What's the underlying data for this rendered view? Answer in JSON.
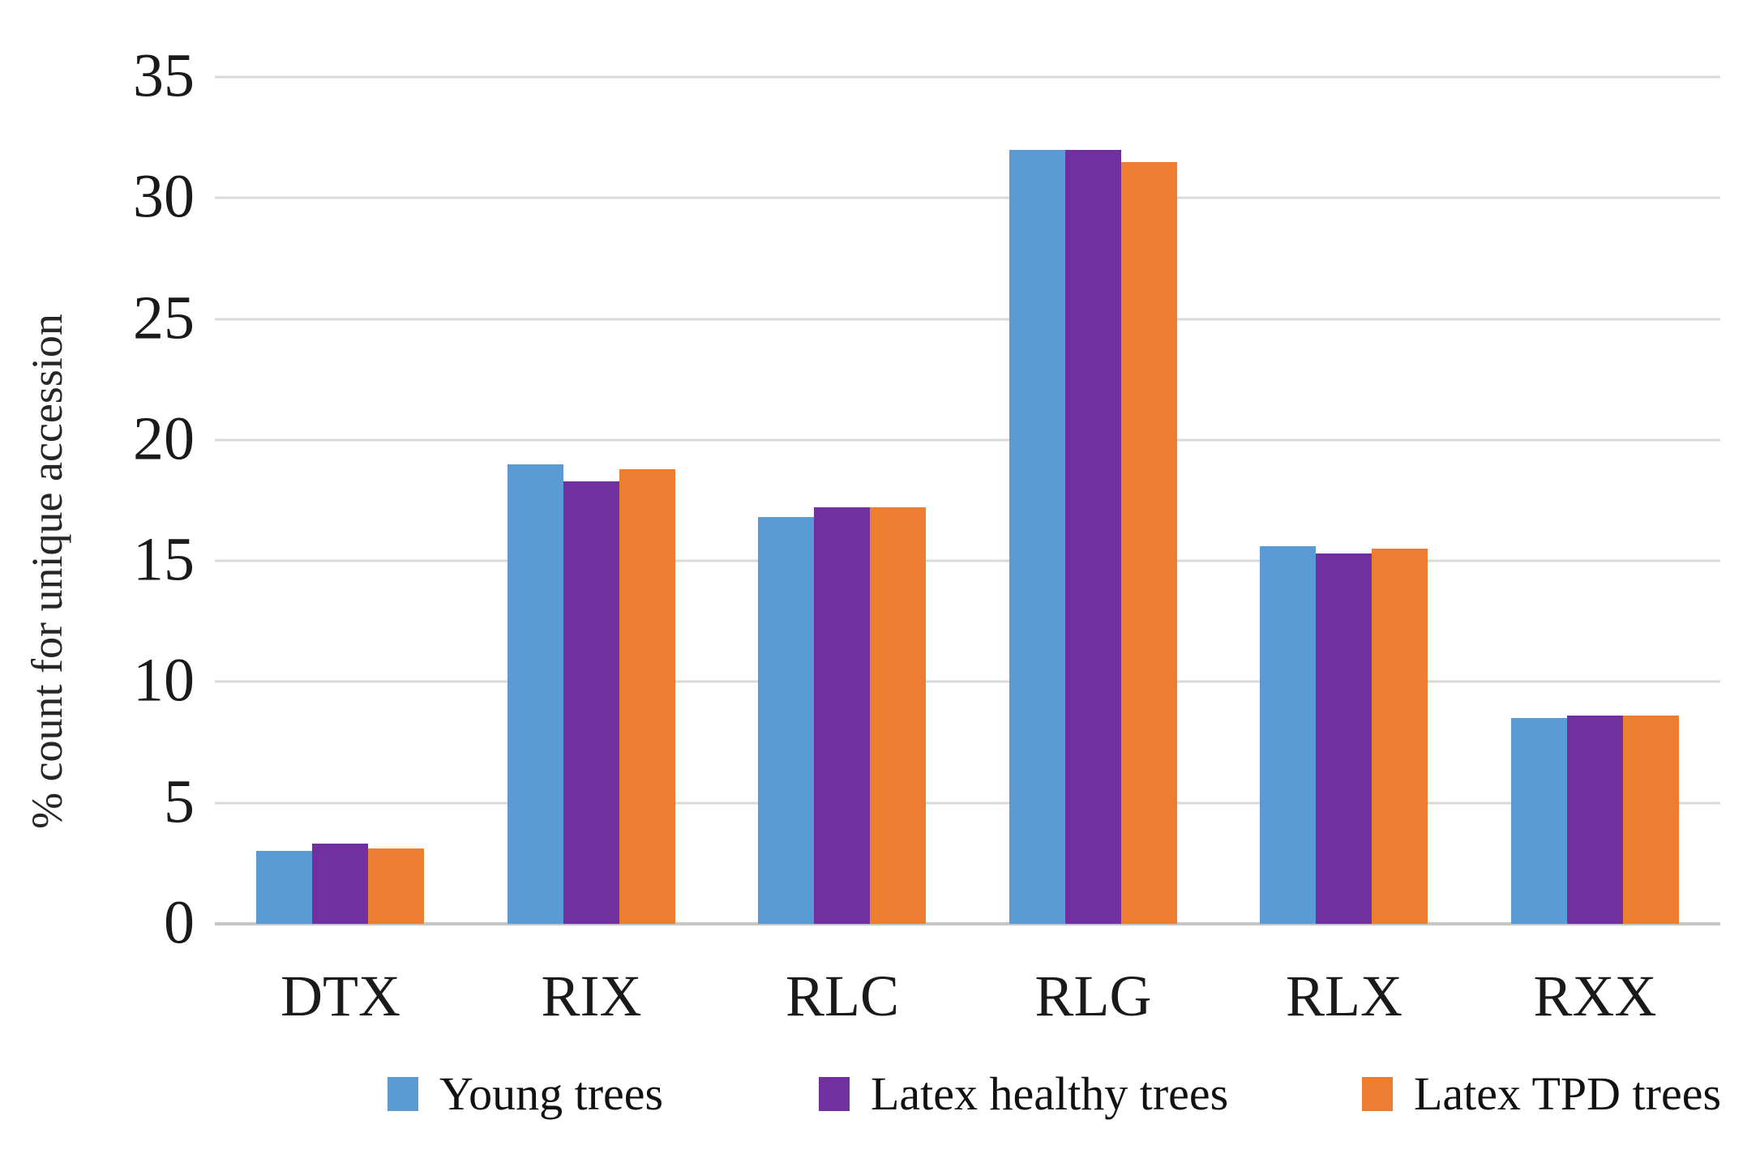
{
  "chart_data": {
    "type": "bar",
    "title": "",
    "categories": [
      "DTX",
      "RIX",
      "RLC",
      "RLG",
      "RLX",
      "RXX"
    ],
    "series": [
      {
        "name": "Young trees",
        "color": "#5B9BD5",
        "values": [
          3.0,
          19.0,
          16.8,
          32.0,
          15.6,
          8.5
        ]
      },
      {
        "name": "Latex healthy trees",
        "color": "#7030A0",
        "values": [
          3.3,
          18.3,
          17.2,
          32.0,
          15.3,
          8.6
        ]
      },
      {
        "name": "Latex TPD trees",
        "color": "#ED7D31",
        "values": [
          3.1,
          18.8,
          17.2,
          31.5,
          15.5,
          8.6
        ]
      }
    ],
    "xlabel": "",
    "ylabel": "% count for unique accession",
    "ylim": [
      0,
      35
    ],
    "yticks": [
      0,
      5,
      10,
      15,
      20,
      25,
      30,
      35
    ],
    "grid": "horizontal",
    "legend_position": "bottom",
    "colors": {
      "gridline": "#d9d9d9",
      "baseline": "#c6c6c6",
      "text": "#1a1a1a",
      "background": "#ffffff"
    }
  }
}
